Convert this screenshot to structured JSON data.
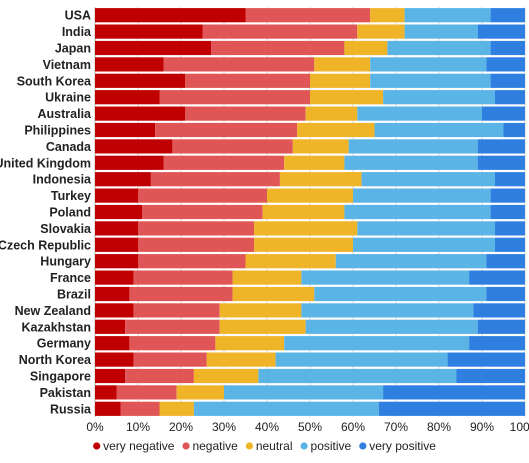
{
  "chart_data": {
    "type": "bar",
    "orientation": "horizontal",
    "stacked": true,
    "categories": [
      "USA",
      "India",
      "Japan",
      "Vietnam",
      "South Korea",
      "Ukraine",
      "Australia",
      "Philippines",
      "Canada",
      "United Kingdom",
      "Indonesia",
      "Turkey",
      "Poland",
      "Slovakia",
      "Czech Republic",
      "Hungary",
      "France",
      "Brazil",
      "New Zealand",
      "Kazakhstan",
      "Germany",
      "North Korea",
      "Singapore",
      "Pakistan",
      "Russia"
    ],
    "series": [
      {
        "name": "very negative",
        "color": "#c00000",
        "values": [
          35,
          25,
          27,
          16,
          21,
          15,
          21,
          14,
          18,
          16,
          13,
          10,
          11,
          10,
          10,
          10,
          9,
          8,
          9,
          7,
          8,
          9,
          7,
          5,
          6
        ]
      },
      {
        "name": "negative",
        "color": "#e05555",
        "values": [
          29,
          36,
          31,
          35,
          29,
          35,
          28,
          33,
          28,
          28,
          30,
          30,
          28,
          27,
          27,
          25,
          23,
          24,
          20,
          22,
          20,
          17,
          16,
          14,
          9
        ]
      },
      {
        "name": "neutral",
        "color": "#f0b429",
        "values": [
          8,
          11,
          10,
          13,
          14,
          17,
          12,
          18,
          13,
          14,
          19,
          20,
          19,
          24,
          23,
          21,
          16,
          19,
          19,
          20,
          16,
          16,
          15,
          11,
          8
        ]
      },
      {
        "name": "positive",
        "color": "#5ab4e6",
        "values": [
          20,
          17,
          24,
          27,
          28,
          26,
          29,
          30,
          30,
          31,
          31,
          32,
          34,
          32,
          33,
          35,
          39,
          40,
          40,
          40,
          43,
          40,
          46,
          37,
          43
        ]
      },
      {
        "name": "very positive",
        "color": "#2f7fe0",
        "values": [
          8,
          11,
          8,
          9,
          8,
          7,
          10,
          5,
          11,
          11,
          7,
          8,
          8,
          7,
          7,
          9,
          13,
          9,
          12,
          11,
          13,
          18,
          16,
          33,
          34
        ]
      }
    ],
    "xlim": [
      0,
      100
    ],
    "x_ticks": [
      "0%",
      "10%",
      "20%",
      "30%",
      "40%",
      "50%",
      "60%",
      "70%",
      "80%",
      "90%",
      "100%"
    ],
    "legend_position": "bottom",
    "grid": true
  }
}
